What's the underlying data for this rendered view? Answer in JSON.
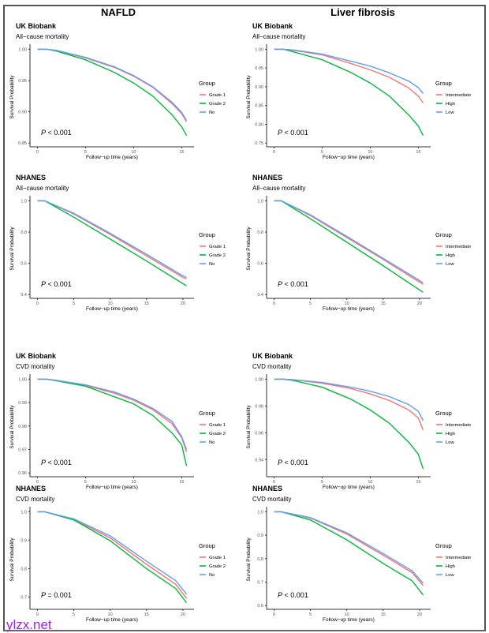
{
  "column_titles": [
    "NAFLD",
    "Liver fibrosis"
  ],
  "watermark": "ylzx.net",
  "colors": {
    "red": "#F8766D",
    "green": "#00BA38",
    "blue": "#619CFF"
  },
  "chart_data": [
    {
      "type": "line",
      "cohort": "UK Biobank",
      "outcome": "All−cause mortality",
      "xlabel": "Follow−up time (years)",
      "ylabel": "Survival Probability",
      "xlim": [
        0,
        15.5
      ],
      "ylim": [
        0.85,
        1.0
      ],
      "xticks": [
        0,
        5,
        10,
        15
      ],
      "yticks": [
        0.85,
        0.9,
        0.95,
        1.0
      ],
      "ytick_labels": [
        "0.85",
        "0.90",
        "0.95",
        "1.00"
      ],
      "legend_title": "Group",
      "legend": "right",
      "p_label": "P",
      "p_text": " < 0.001",
      "series": [
        {
          "name": "Grade 1",
          "color": "#F8766D",
          "x": [
            0,
            1,
            2,
            5,
            8,
            10,
            12,
            14,
            15,
            15.5
          ],
          "y": [
            1,
            1,
            0.998,
            0.986,
            0.971,
            0.957,
            0.939,
            0.913,
            0.897,
            0.884
          ]
        },
        {
          "name": "Grade 2",
          "color": "#00BA38",
          "x": [
            0,
            1,
            2,
            5,
            8,
            10,
            12,
            14,
            15,
            15.5
          ],
          "y": [
            1,
            1,
            0.997,
            0.983,
            0.963,
            0.946,
            0.925,
            0.895,
            0.876,
            0.862
          ]
        },
        {
          "name": "No",
          "color": "#619CFF",
          "x": [
            0,
            1,
            2,
            5,
            8,
            10,
            12,
            14,
            15,
            15.5
          ],
          "y": [
            1,
            1,
            0.998,
            0.987,
            0.972,
            0.958,
            0.94,
            0.915,
            0.899,
            0.886
          ]
        }
      ]
    },
    {
      "type": "line",
      "cohort": "UK Biobank",
      "outcome": "All−cause mortality",
      "xlabel": "Follow−up time (years)",
      "ylabel": "Survival Probability",
      "xlim": [
        0,
        15.5
      ],
      "ylim": [
        0.75,
        1.0
      ],
      "xticks": [
        0,
        5,
        10,
        15
      ],
      "yticks": [
        0.75,
        0.8,
        0.85,
        0.9,
        0.95,
        1.0
      ],
      "ytick_labels": [
        "0.75",
        "0.80",
        "0.85",
        "0.90",
        "0.95",
        "1.00"
      ],
      "legend_title": "Group",
      "legend": "right",
      "p_label": "P",
      "p_text": " < 0.001",
      "series": [
        {
          "name": "Intermediate",
          "color": "#F8766D",
          "x": [
            0,
            1,
            2,
            5,
            8,
            10,
            12,
            14,
            15,
            15.5
          ],
          "y": [
            1,
            1,
            0.997,
            0.985,
            0.962,
            0.945,
            0.925,
            0.897,
            0.875,
            0.857
          ]
        },
        {
          "name": "High",
          "color": "#00BA38",
          "x": [
            0,
            1,
            2,
            5,
            8,
            10,
            12,
            14,
            15,
            15.5
          ],
          "y": [
            1,
            1,
            0.993,
            0.972,
            0.938,
            0.91,
            0.875,
            0.825,
            0.795,
            0.77
          ]
        },
        {
          "name": "Low",
          "color": "#619CFF",
          "x": [
            0,
            1,
            2,
            5,
            8,
            10,
            12,
            14,
            15,
            15.5
          ],
          "y": [
            1,
            1,
            0.998,
            0.987,
            0.968,
            0.955,
            0.937,
            0.915,
            0.898,
            0.882
          ]
        }
      ]
    },
    {
      "type": "line",
      "cohort": "NHANES",
      "outcome": "All−cause mortality",
      "xlabel": "Follow−up time (years)",
      "ylabel": "Survival Probability",
      "xlim": [
        0,
        20.5
      ],
      "ylim": [
        0.4,
        1.0
      ],
      "xticks": [
        0,
        5,
        10,
        15,
        20
      ],
      "yticks": [
        0.4,
        0.6,
        0.8,
        1.0
      ],
      "ytick_labels": [
        "0.4",
        "0.6",
        "0.8",
        "1.0"
      ],
      "legend_title": "Group",
      "legend": "right",
      "p_label": "P",
      "p_text": " < 0.001",
      "series": [
        {
          "name": "Grade 1",
          "color": "#F8766D",
          "x": [
            0,
            1,
            5,
            10,
            15,
            20,
            20.5
          ],
          "y": [
            1,
            1,
            0.915,
            0.785,
            0.648,
            0.51,
            0.5
          ]
        },
        {
          "name": "Grade 2",
          "color": "#00BA38",
          "x": [
            0,
            1,
            5,
            10,
            15,
            20,
            20.5
          ],
          "y": [
            1,
            1,
            0.895,
            0.755,
            0.615,
            0.47,
            0.455
          ]
        },
        {
          "name": "No",
          "color": "#619CFF",
          "x": [
            0,
            1,
            5,
            10,
            15,
            20,
            20.5
          ],
          "y": [
            1,
            1,
            0.92,
            0.792,
            0.658,
            0.52,
            0.51
          ]
        }
      ]
    },
    {
      "type": "line",
      "cohort": "NHANES",
      "outcome": "All−cause mortality",
      "xlabel": "Follow−up time (years)",
      "ylabel": "Survival Probability",
      "xlim": [
        0,
        20.5
      ],
      "ylim": [
        0.4,
        1.0
      ],
      "xticks": [
        0,
        5,
        10,
        15,
        20
      ],
      "yticks": [
        0.4,
        0.6,
        0.8,
        1.0
      ],
      "ytick_labels": [
        "0.4",
        "0.6",
        "0.8",
        "1.0"
      ],
      "legend_title": "Group",
      "legend": "right",
      "p_label": "P",
      "p_text": " < 0.001",
      "series": [
        {
          "name": "Intermediate",
          "color": "#F8766D",
          "x": [
            0,
            1,
            5,
            10,
            15,
            20,
            20.5
          ],
          "y": [
            1,
            1,
            0.905,
            0.765,
            0.625,
            0.48,
            0.465
          ]
        },
        {
          "name": "High",
          "color": "#00BA38",
          "x": [
            0,
            1,
            5,
            10,
            15,
            20,
            20.5
          ],
          "y": [
            1,
            1,
            0.885,
            0.735,
            0.585,
            0.43,
            0.415
          ]
        },
        {
          "name": "Low",
          "color": "#619CFF",
          "x": [
            0,
            1,
            5,
            10,
            15,
            20,
            20.5
          ],
          "y": [
            1,
            1,
            0.91,
            0.772,
            0.632,
            0.49,
            0.475
          ]
        }
      ]
    },
    {
      "type": "line",
      "cohort": "UK Biobank",
      "outcome": "CVD mortality",
      "xlabel": "Follow−up time (years)",
      "ylabel": "Survival Probability",
      "xlim": [
        0,
        15.5
      ],
      "ylim": [
        0.96,
        1.0
      ],
      "xticks": [
        0,
        5,
        10,
        15
      ],
      "yticks": [
        0.96,
        0.97,
        0.98,
        0.99,
        1.0
      ],
      "ytick_labels": [
        "0.96",
        "0.97",
        "0.98",
        "0.99",
        "1.00"
      ],
      "legend_title": "Group",
      "legend": "right",
      "p_label": "P",
      "p_text": " < 0.001",
      "series": [
        {
          "name": "Grade 1",
          "color": "#F8766D",
          "x": [
            0,
            1,
            2,
            5,
            8,
            10,
            12,
            14,
            15,
            15.5
          ],
          "y": [
            1,
            1,
            0.9995,
            0.9973,
            0.994,
            0.991,
            0.987,
            0.981,
            0.975,
            0.969
          ]
        },
        {
          "name": "Grade 2",
          "color": "#00BA38",
          "x": [
            0,
            1,
            2,
            5,
            8,
            10,
            12,
            14,
            15,
            15.5
          ],
          "y": [
            1,
            1,
            0.9993,
            0.997,
            0.9925,
            0.9895,
            0.9845,
            0.977,
            0.972,
            0.963
          ]
        },
        {
          "name": "No",
          "color": "#619CFF",
          "x": [
            0,
            1,
            2,
            5,
            8,
            10,
            12,
            14,
            15,
            15.5
          ],
          "y": [
            1,
            1,
            0.9995,
            0.9976,
            0.9945,
            0.9915,
            0.9875,
            0.982,
            0.9755,
            0.97
          ]
        }
      ]
    },
    {
      "type": "line",
      "cohort": "UK Biobank",
      "outcome": "CVD mortality",
      "xlabel": "Follow−up time (years)",
      "ylabel": "Survival Probability",
      "xlim": [
        0,
        15.5
      ],
      "ylim": [
        0.93,
        1.0
      ],
      "xticks": [
        0,
        5,
        10,
        15
      ],
      "yticks": [
        0.94,
        0.96,
        0.98,
        1.0
      ],
      "ytick_labels": [
        "0.94",
        "0.96",
        "0.98",
        "1.00"
      ],
      "legend_title": "Group",
      "legend": "right",
      "p_label": "P",
      "p_text": " < 0.001",
      "series": [
        {
          "name": "Intermediate",
          "color": "#F8766D",
          "x": [
            0,
            1,
            2,
            5,
            8,
            10,
            12,
            14,
            15,
            15.5
          ],
          "y": [
            1,
            1,
            0.9995,
            0.997,
            0.993,
            0.989,
            0.984,
            0.977,
            0.971,
            0.962
          ]
        },
        {
          "name": "High",
          "color": "#00BA38",
          "x": [
            0,
            1,
            2,
            5,
            8,
            10,
            12,
            14,
            15,
            15.5
          ],
          "y": [
            1,
            1,
            0.999,
            0.994,
            0.985,
            0.977,
            0.967,
            0.953,
            0.944,
            0.933
          ]
        },
        {
          "name": "Low",
          "color": "#619CFF",
          "x": [
            0,
            1,
            2,
            5,
            8,
            10,
            12,
            14,
            15,
            15.5
          ],
          "y": [
            1,
            1,
            0.9996,
            0.9975,
            0.994,
            0.991,
            0.987,
            0.981,
            0.976,
            0.969
          ]
        }
      ]
    },
    {
      "type": "line",
      "cohort": "NHANES",
      "outcome": "CVD mortality",
      "xlabel": "Follow−up time (years)",
      "ylabel": "Survival Probability",
      "xlim": [
        0,
        20.5
      ],
      "ylim": [
        0.67,
        1.0
      ],
      "xticks": [
        0,
        5,
        10,
        15,
        20
      ],
      "yticks": [
        0.7,
        0.8,
        0.9,
        1.0
      ],
      "ytick_labels": [
        "0.7",
        "0.8",
        "0.9",
        "1.0"
      ],
      "legend_title": "Group",
      "legend": "right",
      "p_label": "P",
      "p_text": " = 0.001",
      "series": [
        {
          "name": "Grade 1",
          "color": "#F8766D",
          "x": [
            0,
            1,
            5,
            10,
            15,
            19,
            20.5
          ],
          "y": [
            1,
            1,
            0.973,
            0.908,
            0.815,
            0.745,
            0.695
          ]
        },
        {
          "name": "Grade 2",
          "color": "#00BA38",
          "x": [
            0,
            1,
            5,
            10,
            15,
            19,
            20.5
          ],
          "y": [
            1,
            1,
            0.971,
            0.898,
            0.8,
            0.73,
            0.68
          ]
        },
        {
          "name": "No",
          "color": "#619CFF",
          "x": [
            0,
            1,
            5,
            10,
            15,
            19,
            20.5
          ],
          "y": [
            1,
            1,
            0.975,
            0.915,
            0.826,
            0.758,
            0.71
          ]
        }
      ]
    },
    {
      "type": "line",
      "cohort": "NHANES",
      "outcome": "CVD mortality",
      "xlabel": "Follow−up time (years)",
      "ylabel": "Survival Probability",
      "xlim": [
        0,
        20.5
      ],
      "ylim": [
        0.6,
        1.0
      ],
      "xticks": [
        0,
        5,
        10,
        15,
        20
      ],
      "yticks": [
        0.6,
        0.7,
        0.8,
        0.9,
        1.0
      ],
      "ytick_labels": [
        "0.6",
        "0.7",
        "0.8",
        "0.9",
        "1.0"
      ],
      "legend_title": "Group",
      "legend": "right",
      "p_label": "P",
      "p_text": " < 0.001",
      "series": [
        {
          "name": "Intermediate",
          "color": "#F8766D",
          "x": [
            0,
            1,
            5,
            10,
            15,
            19,
            20.5
          ],
          "y": [
            1,
            1,
            0.973,
            0.905,
            0.815,
            0.74,
            0.685
          ]
        },
        {
          "name": "High",
          "color": "#00BA38",
          "x": [
            0,
            1,
            5,
            10,
            15,
            19,
            20.5
          ],
          "y": [
            1,
            1,
            0.965,
            0.88,
            0.78,
            0.705,
            0.645
          ]
        },
        {
          "name": "Low",
          "color": "#619CFF",
          "x": [
            0,
            1,
            5,
            10,
            15,
            19,
            20.5
          ],
          "y": [
            1,
            1,
            0.975,
            0.91,
            0.822,
            0.748,
            0.695
          ]
        }
      ]
    }
  ]
}
